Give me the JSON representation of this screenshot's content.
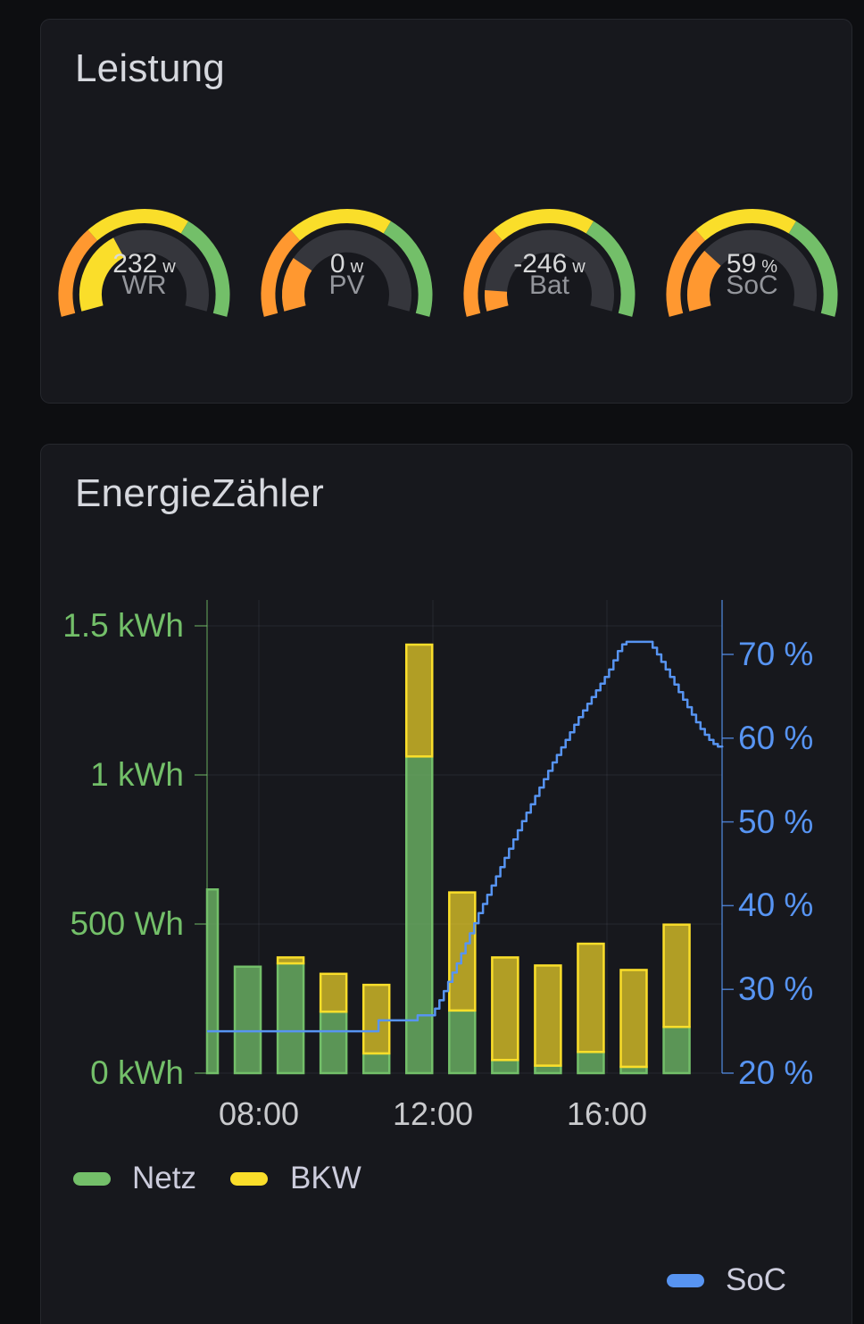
{
  "colors": {
    "green": "#73BF69",
    "yellow": "#FADE2A",
    "orange": "#FF9830",
    "blue": "#5794F2",
    "gauge_track": "#35363C",
    "panel_bg": "#17181D",
    "page_bg": "#0D0E11",
    "panel_border": "#26282E",
    "text": "#D8D9DA",
    "muted_text": "#94969C",
    "axis_time_text": "#C9CACD"
  },
  "panels": {
    "leistung": {
      "title": "Leistung"
    },
    "energiezaehler": {
      "title": "EnergieZähler"
    }
  },
  "chart_data": [
    {
      "type": "gauge",
      "title": "Leistung",
      "thresholds": [
        {
          "color": "#FF9830",
          "from": 0,
          "to": 0.305
        },
        {
          "color": "#FADE2A",
          "from": 0.305,
          "to": 0.648
        },
        {
          "color": "#73BF69",
          "from": 0.648,
          "to": 1
        }
      ],
      "gauges": [
        {
          "label": "WR",
          "value": "232",
          "unit": "w",
          "fill_frac": 0.365,
          "fill_color": "#FADE2A"
        },
        {
          "label": "PV",
          "value": "0",
          "unit": "w",
          "fill_frac": 0.235,
          "fill_color": "#FF9830"
        },
        {
          "label": "Bat",
          "value": "-246",
          "unit": "w",
          "fill_frac": 0.09,
          "fill_color": "#FF9830"
        },
        {
          "label": "SoC",
          "value": "59",
          "unit": "%",
          "fill_frac": 0.275,
          "fill_color": "#FF9830"
        }
      ]
    },
    {
      "type": "bar",
      "title": "EnergieZähler",
      "stacked": true,
      "categories": [
        "07:00",
        "08:00",
        "09:00",
        "10:00",
        "11:00",
        "12:00",
        "13:00",
        "14:00",
        "15:00",
        "16:00",
        "17:00",
        "18:00"
      ],
      "series": [
        {
          "name": "Netz",
          "type": "bar",
          "unit": "Wh",
          "color": "#73BF69",
          "values": [
            616,
            357,
            368,
            206,
            66,
            1062,
            210,
            44,
            25,
            71,
            21,
            155
          ]
        },
        {
          "name": "BKW",
          "type": "bar",
          "unit": "Wh",
          "color": "#FADE2A",
          "values": [
            0,
            0,
            20,
            127,
            230,
            375,
            396,
            344,
            336,
            363,
            325,
            343
          ]
        },
        {
          "name": "SoC",
          "type": "line",
          "unit": "%",
          "color": "#5794F2",
          "axis": "right",
          "points": [
            [
              6.81,
              25
            ],
            [
              10.65,
              25
            ],
            [
              10.75,
              26.3
            ],
            [
              11.55,
              26.3
            ],
            [
              11.65,
              26.9
            ],
            [
              11.95,
              26.9
            ],
            [
              12.05,
              27.7
            ],
            [
              12.15,
              28.7
            ],
            [
              12.25,
              29.8
            ],
            [
              12.35,
              30.9
            ],
            [
              12.45,
              32
            ],
            [
              12.55,
              33.1
            ],
            [
              12.65,
              34.3
            ],
            [
              12.75,
              35.5
            ],
            [
              12.85,
              36.7
            ],
            [
              12.95,
              37.9
            ],
            [
              13.05,
              39.1
            ],
            [
              13.15,
              40.2
            ],
            [
              13.25,
              41.3
            ],
            [
              13.35,
              42.4
            ],
            [
              13.45,
              43.5
            ],
            [
              13.55,
              44.6
            ],
            [
              13.65,
              45.7
            ],
            [
              13.75,
              46.8
            ],
            [
              13.85,
              47.9
            ],
            [
              13.95,
              49
            ],
            [
              14.05,
              50.1
            ],
            [
              14.15,
              51.1
            ],
            [
              14.25,
              52.1
            ],
            [
              14.35,
              53.1
            ],
            [
              14.45,
              54.1
            ],
            [
              14.55,
              55.1
            ],
            [
              14.65,
              56.1
            ],
            [
              14.75,
              57.1
            ],
            [
              14.85,
              58
            ],
            [
              14.95,
              58.9
            ],
            [
              15.05,
              59.8
            ],
            [
              15.15,
              60.7
            ],
            [
              15.25,
              61.6
            ],
            [
              15.35,
              62.5
            ],
            [
              15.45,
              63.3
            ],
            [
              15.55,
              64.1
            ],
            [
              15.65,
              64.9
            ],
            [
              15.75,
              65.7
            ],
            [
              15.85,
              66.5
            ],
            [
              15.95,
              67.3
            ],
            [
              16.05,
              68.2
            ],
            [
              16.15,
              69.3
            ],
            [
              16.25,
              70.4
            ],
            [
              16.35,
              71.2
            ],
            [
              16.45,
              71.5
            ],
            [
              16.95,
              71.5
            ],
            [
              17.05,
              70.8
            ],
            [
              17.15,
              70
            ],
            [
              17.25,
              69.1
            ],
            [
              17.35,
              68.2
            ],
            [
              17.45,
              67.3
            ],
            [
              17.55,
              66.4
            ],
            [
              17.65,
              65.5
            ],
            [
              17.75,
              64.6
            ],
            [
              17.85,
              63.7
            ],
            [
              17.95,
              62.8
            ],
            [
              18.05,
              61.9
            ],
            [
              18.15,
              61.1
            ],
            [
              18.25,
              60.4
            ],
            [
              18.35,
              59.8
            ],
            [
              18.45,
              59.3
            ],
            [
              18.55,
              59
            ],
            [
              18.65,
              58.9
            ]
          ]
        }
      ],
      "y_left": {
        "color": "#73BF69",
        "ticks": [
          {
            "label": "1.5 kWh",
            "value": 1500
          },
          {
            "label": "1 kWh",
            "value": 1000
          },
          {
            "label": "500 Wh",
            "value": 500
          },
          {
            "label": "0 kWh",
            "value": 0
          }
        ],
        "range": [
          0,
          1590
        ]
      },
      "y_right": {
        "color": "#5794F2",
        "ticks": [
          {
            "label": "70 %",
            "value": 70
          },
          {
            "label": "60 %",
            "value": 60
          },
          {
            "label": "50 %",
            "value": 50
          },
          {
            "label": "40 %",
            "value": 40
          },
          {
            "label": "30 %",
            "value": 30
          },
          {
            "label": "20 %",
            "value": 20
          }
        ],
        "range": [
          20,
          76.5
        ]
      },
      "x_axis": {
        "ticks": [
          {
            "label": "08:00",
            "t": 8
          },
          {
            "label": "12:00",
            "t": 12
          },
          {
            "label": "16:00",
            "t": 16
          }
        ],
        "range_hours": [
          6.81,
          18.65
        ]
      },
      "grid": true,
      "legend_bottom": [
        "Netz",
        "BKW"
      ],
      "legend_bottom_right": [
        "SoC"
      ]
    }
  ]
}
